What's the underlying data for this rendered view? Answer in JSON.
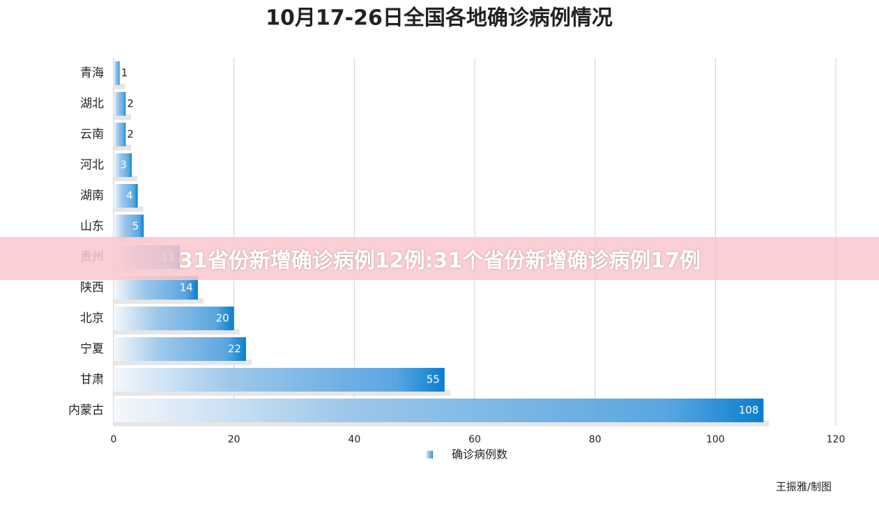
{
  "chart_data": {
    "type": "bar",
    "orientation": "horizontal",
    "title": "10月17-26日全国各地确诊病例情况",
    "categories": [
      "青海",
      "湖北",
      "云南",
      "河北",
      "湖南",
      "山东",
      "贵州",
      "陕西",
      "北京",
      "宁夏",
      "甘肃",
      "内蒙古"
    ],
    "values": [
      1,
      2,
      2,
      3,
      4,
      5,
      11,
      14,
      20,
      22,
      55,
      108
    ],
    "color": "#0a7fd0",
    "xlim": [
      0,
      120
    ],
    "xticks": [
      0,
      20,
      40,
      60,
      80,
      100,
      120
    ],
    "grid": true,
    "legend": "确诊病例数",
    "credit": "王振雅/制图"
  },
  "banner": "31省份新增确诊病例12例:31个省份新增确诊病例17例"
}
